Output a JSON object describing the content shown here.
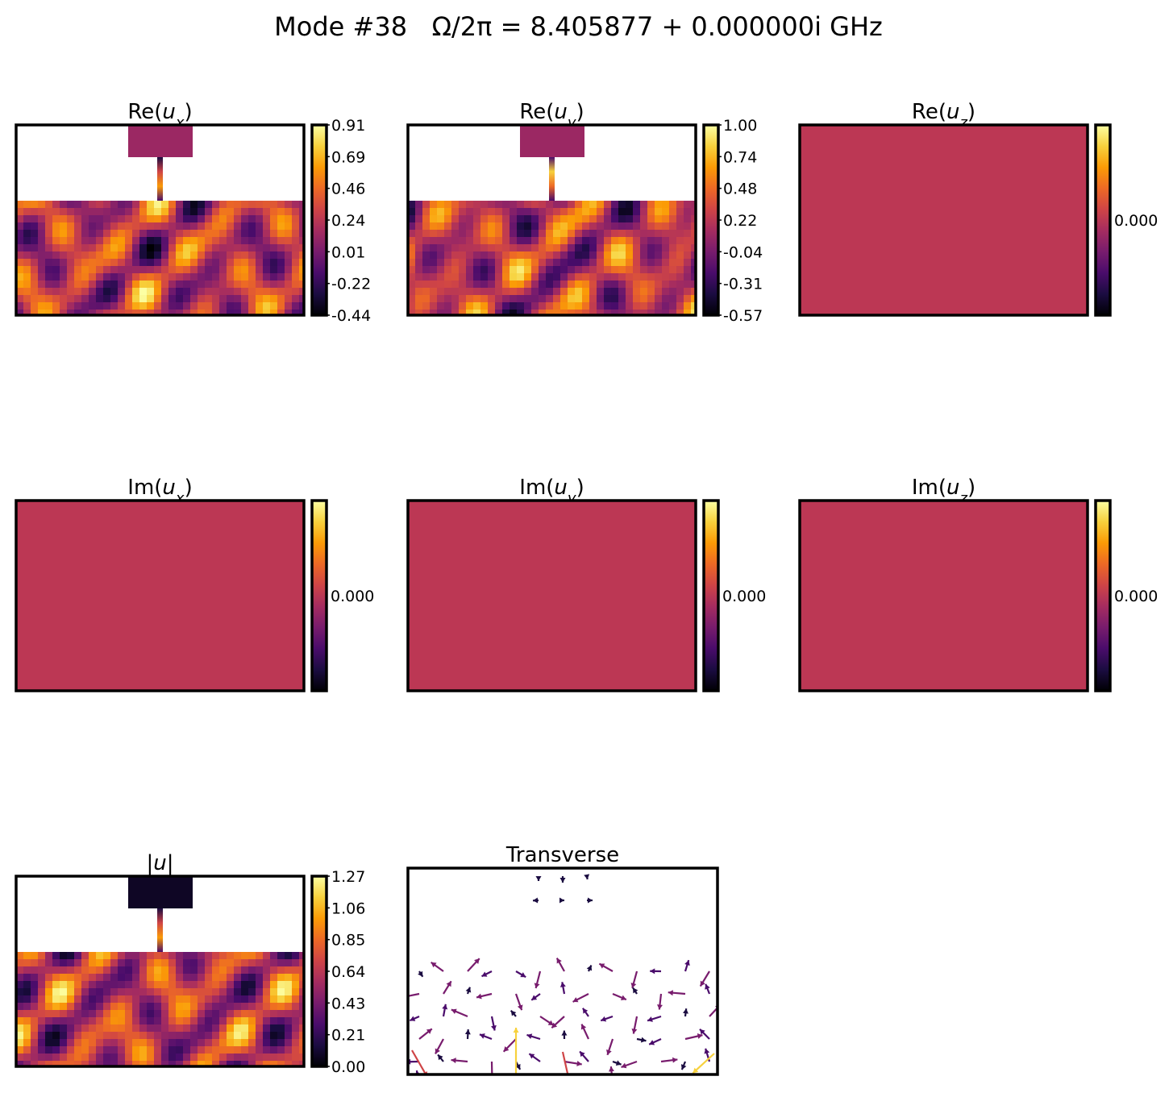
{
  "figure": {
    "title": "Mode #38   Ω/2π = 8.405877 + 0.000000i GHz"
  },
  "colors": {
    "uniform_field": "#bc3754",
    "frame": "#000000",
    "colormap": "inferno"
  },
  "chart_data": [
    {
      "type": "heatmap",
      "title": "Re(u_x)",
      "title_html": "Re(<tspan font-style='italic'>u</tspan><tspan font-style='italic' baseline-shift='sub' font-size='18'>x</tspan>)",
      "colorbar_ticks": [
        "0.91",
        "0.69",
        "0.46",
        "0.24",
        "0.01",
        "-0.22",
        "-0.44"
      ],
      "vmin": -0.44,
      "vmax": 0.91,
      "geometry": "waveguide"
    },
    {
      "type": "heatmap",
      "title": "Re(u_y)",
      "title_html": "Re(<tspan font-style='italic'>u</tspan><tspan font-style='italic' baseline-shift='sub' font-size='18'>y</tspan>)",
      "colorbar_ticks": [
        "1.00",
        "0.74",
        "0.48",
        "0.22",
        "-0.04",
        "-0.31",
        "-0.57"
      ],
      "vmin": -0.57,
      "vmax": 1.0,
      "geometry": "waveguide"
    },
    {
      "type": "heatmap",
      "title": "Re(u_z)",
      "title_html": "Re(<tspan font-style='italic'>u</tspan><tspan font-style='italic' baseline-shift='sub' font-size='18'>z</tspan>)",
      "colorbar_ticks": [
        "0.000"
      ],
      "uniform": true
    },
    {
      "type": "heatmap",
      "title": "Im(u_x)",
      "title_html": "Im(<tspan font-style='italic'>u</tspan><tspan font-style='italic' baseline-shift='sub' font-size='18'>x</tspan>)",
      "colorbar_ticks": [
        "0.000"
      ],
      "uniform": true
    },
    {
      "type": "heatmap",
      "title": "Im(u_y)",
      "title_html": "Im(<tspan font-style='italic'>u</tspan><tspan font-style='italic' baseline-shift='sub' font-size='18'>y</tspan>)",
      "colorbar_ticks": [
        "0.000"
      ],
      "uniform": true
    },
    {
      "type": "heatmap",
      "title": "Im(u_z)",
      "title_html": "Im(<tspan font-style='italic'>u</tspan><tspan font-style='italic' baseline-shift='sub' font-size='18'>z</tspan>)",
      "colorbar_ticks": [
        "0.000"
      ],
      "uniform": true
    },
    {
      "type": "heatmap",
      "title": "|u|",
      "title_html": "|<tspan font-style='italic'>u</tspan>|",
      "colorbar_ticks": [
        "1.27",
        "1.06",
        "0.85",
        "0.64",
        "0.43",
        "0.21",
        "0.00"
      ],
      "vmin": 0.0,
      "vmax": 1.27,
      "geometry": "waveguide"
    },
    {
      "type": "quiver",
      "title": "Transverse",
      "title_html": "Transverse"
    }
  ]
}
